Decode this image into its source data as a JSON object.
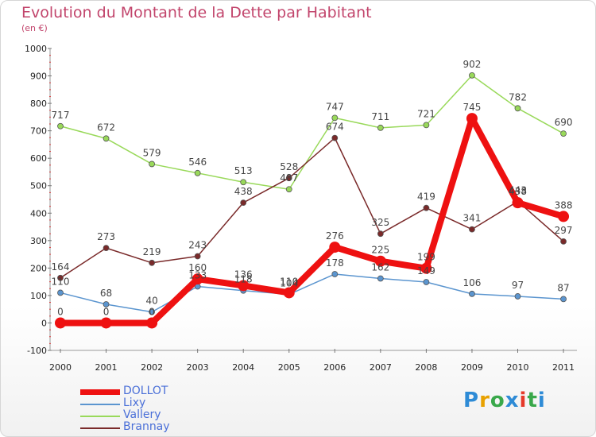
{
  "header": {
    "title": "Evolution du Montant de la Dette par Habitant",
    "subtitle": "(en €)"
  },
  "logo": {
    "text": "Proxiti",
    "colors": [
      "#2e8bd6",
      "#e8a100",
      "#39a84a",
      "#2e8bd6",
      "#e53a2a",
      "#39a84a",
      "#2e8bd6"
    ]
  },
  "chart_data": {
    "type": "line",
    "title": "Evolution du Montant de la Dette par Habitant",
    "ylabel": "(en €)",
    "xlabel": "",
    "x": [
      "2000",
      "2001",
      "2002",
      "2003",
      "2004",
      "2005",
      "2006",
      "2007",
      "2008",
      "2009",
      "2010",
      "2011"
    ],
    "ylim": [
      -100,
      1000
    ],
    "yticks": [
      "-100",
      "0",
      "100",
      "200",
      "300",
      "400",
      "500",
      "600",
      "700",
      "800",
      "900",
      "1000"
    ],
    "legend_position": "bottom-left",
    "grid": false,
    "series": [
      {
        "name": "DOLLOT",
        "color": "#ee1111",
        "values": [
          0,
          0,
          0,
          160,
          136,
          110,
          276,
          225,
          199,
          745,
          438,
          388
        ],
        "labels": [
          "0",
          "0",
          "0",
          "160",
          "136",
          "110",
          "276",
          "225",
          "199",
          "745",
          "438",
          "388"
        ]
      },
      {
        "name": "Lixy",
        "color": "#5b95cf",
        "values": [
          110,
          68,
          40,
          133,
          118,
          104,
          178,
          162,
          149,
          106,
          97,
          87
        ],
        "labels": [
          "110",
          "68",
          "40",
          "133",
          "118",
          "104",
          "178",
          "162",
          "149",
          "106",
          "97",
          "87"
        ]
      },
      {
        "name": "Vallery",
        "color": "#99d95a",
        "values": [
          717,
          672,
          579,
          546,
          513,
          487,
          747,
          711,
          721,
          902,
          782,
          690
        ],
        "labels": [
          "717",
          "672",
          "579",
          "546",
          "513",
          "487",
          "747",
          "711",
          "721",
          "902",
          "782",
          "690"
        ]
      },
      {
        "name": "Brannay",
        "color": "#7a2a2a",
        "values": [
          164,
          273,
          219,
          243,
          438,
          528,
          674,
          325,
          419,
          341,
          443,
          297
        ],
        "labels": [
          "164",
          "273",
          "219",
          "243",
          "438",
          "528",
          "674",
          "325",
          "419",
          "341",
          "443",
          "297"
        ]
      }
    ]
  }
}
